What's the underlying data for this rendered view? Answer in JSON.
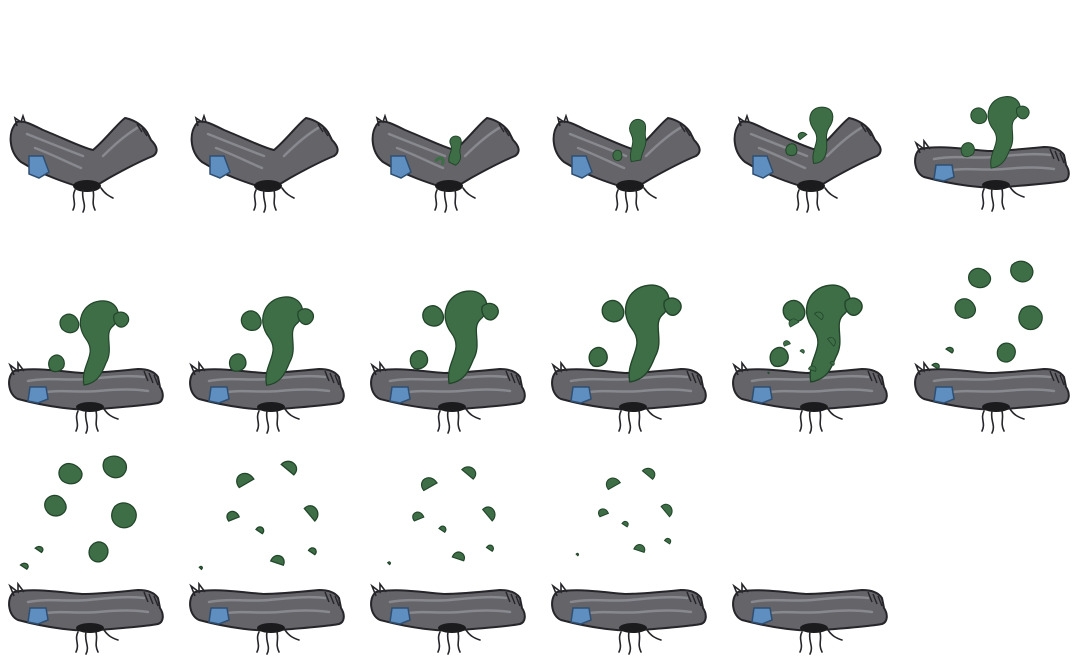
{
  "sprite_sheet": {
    "subject": "stinky-sock",
    "frame_count": 17,
    "columns": 6,
    "rows": 3,
    "colors": {
      "sock_fill": "#646469",
      "sock_highlight": "#8c8c94",
      "sock_outline": "#26262a",
      "patch": "#5f8fc1",
      "patch_outline": "#2f4f72",
      "hole": "#1b1b1d",
      "stench": "#3d6e46",
      "stench_outline": "#22452a"
    },
    "frames": [
      {
        "sock_pose": "bent",
        "stench_level": 0
      },
      {
        "sock_pose": "bent",
        "stench_level": 0
      },
      {
        "sock_pose": "bent",
        "stench_level": 0.15
      },
      {
        "sock_pose": "bent",
        "stench_level": 0.3
      },
      {
        "sock_pose": "bent",
        "stench_level": 0.45
      },
      {
        "sock_pose": "bent",
        "stench_level": 0.6
      },
      {
        "sock_pose": "flat",
        "stench_level": 0.7
      },
      {
        "sock_pose": "flat",
        "stench_level": 0.8
      },
      {
        "sock_pose": "flat",
        "stench_level": 0.9
      },
      {
        "sock_pose": "flat",
        "stench_level": 1.0
      },
      {
        "sock_pose": "flat",
        "stench_level": 1.0,
        "dissipation": 0.15
      },
      {
        "sock_pose": "flat",
        "stench_level": 1.0,
        "dissipation": 0.35
      },
      {
        "sock_pose": "flat",
        "stench_level": 1.0,
        "dissipation": 0.5
      },
      {
        "sock_pose": "flat",
        "stench_level": 1.0,
        "dissipation": 0.65
      },
      {
        "sock_pose": "flat",
        "stench_level": 1.0,
        "dissipation": 0.8
      },
      {
        "sock_pose": "flat",
        "stench_level": 1.0,
        "dissipation": 0.92
      },
      {
        "sock_pose": "flat",
        "stench_level": 0,
        "dissipation": 1.0
      }
    ]
  }
}
